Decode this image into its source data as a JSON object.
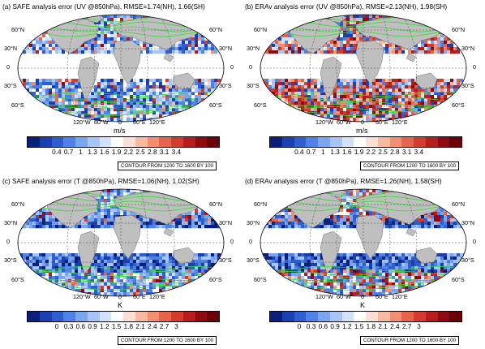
{
  "panels": [
    {
      "id": "a",
      "title": "(a) SAFE analysis error (UV @850hPa), RMSE=1.74(NH), 1.66(SH)",
      "unit": "m/s",
      "ticks": [
        "0.4",
        "0.7",
        "1",
        "1.3",
        "1.6",
        "1.9",
        "2.2",
        "2.5",
        "2.8",
        "3.1",
        "3.4"
      ],
      "contour_note": "CONTOUR FROM 1200 TO 1600 BY 100"
    },
    {
      "id": "b",
      "title": "(b) ERAv analysis error (UV @850hPa), RMSE=2.13(NH), 1.98(SH)",
      "unit": "m/s",
      "ticks": [
        "0.4",
        "0.7",
        "1",
        "1.3",
        "1.6",
        "1.9",
        "2.2",
        "2.5",
        "2.8",
        "3.1",
        "3.4"
      ],
      "contour_note": "CONTOUR FROM 1200 TO 1600 BY 100"
    },
    {
      "id": "c",
      "title": "(c) SAFE analysis error (T @850hPa), RMSE=1.06(NH), 1.02(SH)",
      "unit": "K",
      "ticks": [
        "0",
        "0.3",
        "0.6",
        "0.9",
        "1.2",
        "1.5",
        "1.8",
        "2.1",
        "2.4",
        "2.7",
        "3"
      ],
      "contour_note": "CONTOUR FROM 1200 TO 1600 BY 100"
    },
    {
      "id": "d",
      "title": "(d) ERAv analysis error (T @850hPa), RMSE=1.26(NH), 1.58(SH)",
      "unit": "K",
      "ticks": [
        "0",
        "0.3",
        "0.6",
        "0.9",
        "1.2",
        "1.5",
        "1.8",
        "2.1",
        "2.4",
        "2.7",
        "3"
      ],
      "contour_note": "CONTOUR FROM 1200 TO 1600 BY 100"
    }
  ],
  "lat_labels": {
    "n60": "60°N",
    "n30": "30°N",
    "eq": "0",
    "s30": "30°S",
    "s60": "60°S"
  },
  "lon_labels": {
    "w120": "120°W",
    "w60": "60°W",
    "zero": "0",
    "e60": "60°E",
    "e120": "120°E"
  },
  "colors": {
    "colorbar": [
      "#08207a",
      "#1a3fb0",
      "#2d5fd0",
      "#4f82e6",
      "#7aa6f0",
      "#a7c6f7",
      "#d3e2fb",
      "#ffffff",
      "#fde0d5",
      "#f8b9a0",
      "#f28f72",
      "#e5654c",
      "#d23c2e",
      "#b61d1d",
      "#8f0a10",
      "#6a0008"
    ],
    "land": "#bfbfbf",
    "contour": "#33dd33"
  }
}
